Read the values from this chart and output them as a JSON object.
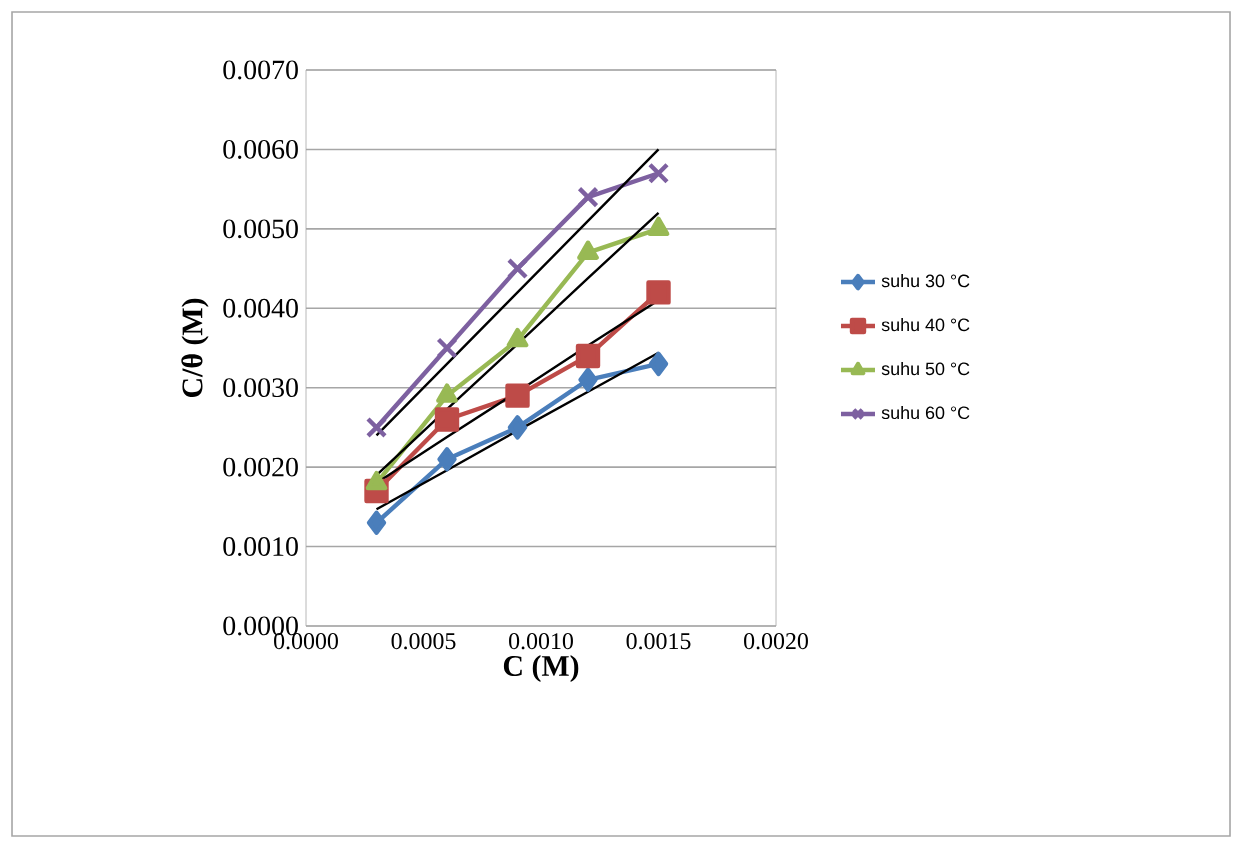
{
  "chart_data": {
    "type": "line",
    "xlabel": "C (M)",
    "ylabel": "C/θ (M)",
    "x": [
      0.0003,
      0.0006,
      0.0009,
      0.0012,
      0.0015
    ],
    "xlim": [
      0,
      0.002
    ],
    "xticks": [
      {
        "value": 0,
        "label": "0.0000"
      },
      {
        "value": 0.0005,
        "label": "0.0005"
      },
      {
        "value": 0.001,
        "label": "0.0010"
      },
      {
        "value": 0.0015,
        "label": "0.0015"
      },
      {
        "value": 0.002,
        "label": "0.0020"
      }
    ],
    "ylim": [
      0,
      0.007
    ],
    "yticks": [
      {
        "value": 0,
        "label": "0.0000"
      },
      {
        "value": 0.001,
        "label": "0.0010"
      },
      {
        "value": 0.002,
        "label": "0.0020"
      },
      {
        "value": 0.003,
        "label": "0.0030"
      },
      {
        "value": 0.004,
        "label": "0.0040"
      },
      {
        "value": 0.005,
        "label": "0.0050"
      },
      {
        "value": 0.006,
        "label": "0.0060"
      },
      {
        "value": 0.007,
        "label": "0.0070"
      }
    ],
    "grid": "y",
    "legend": "right",
    "series": [
      {
        "name": "suhu 30 °C",
        "color": "#4a7ebb",
        "marker": "diamond",
        "values": [
          0.0013,
          0.0021,
          0.0025,
          0.0031,
          0.0033
        ]
      },
      {
        "name": "suhu 40 °C",
        "color": "#be4b48",
        "marker": "square",
        "values": [
          0.0017,
          0.0026,
          0.0029,
          0.0034,
          0.0042
        ]
      },
      {
        "name": "suhu 50 °C",
        "color": "#98b954",
        "marker": "triangle",
        "values": [
          0.0018,
          0.0029,
          0.0036,
          0.0047,
          0.005
        ]
      },
      {
        "name": "suhu 60 °C",
        "color": "#7d60a0",
        "marker": "cross",
        "values": [
          0.0025,
          0.0035,
          0.0045,
          0.0054,
          0.0057
        ]
      },
      {
        "color": "#000000",
        "marker": "none",
        "values": [
          0.00147,
          0.00196,
          0.00246,
          0.00295,
          0.00344
        ]
      },
      {
        "color": "#000000",
        "marker": "none",
        "values": [
          0.0018,
          0.00238,
          0.00295,
          0.00353,
          0.0041
        ]
      },
      {
        "color": "#000000",
        "marker": "none",
        "values": [
          0.0019,
          0.00273,
          0.00355,
          0.00438,
          0.0052
        ]
      },
      {
        "color": "#000000",
        "marker": "none",
        "values": [
          0.0024,
          0.0033,
          0.0042,
          0.0051,
          0.006
        ]
      }
    ]
  }
}
